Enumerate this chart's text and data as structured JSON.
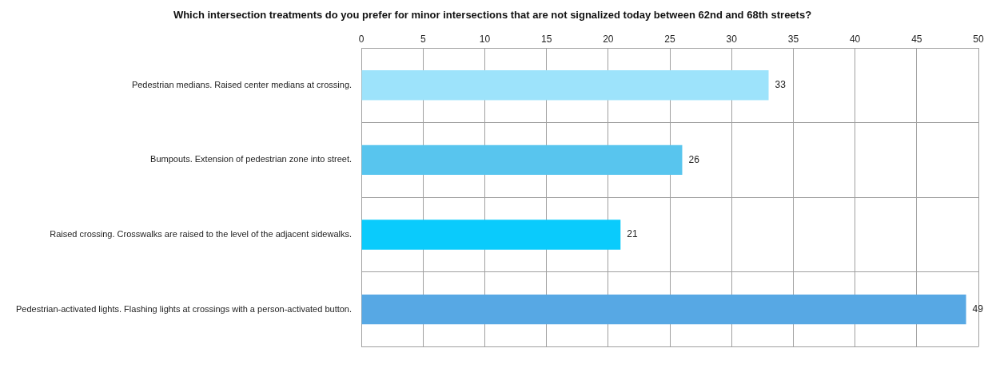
{
  "chart_data": {
    "type": "bar",
    "orientation": "horizontal",
    "title": "Which intersection treatments do you prefer for minor intersections that are not signalized today between 62nd and 68th streets?",
    "categories": [
      "Pedestrian medians. Raised center medians at crossing.",
      "Bumpouts. Extension of pedestrian zone into street.",
      "Raised crossing. Crosswalks are raised to the level of the adjacent sidewalks.",
      "Pedestrian-activated lights. Flashing lights at crossings with a person-activated button."
    ],
    "values": [
      33,
      26,
      21,
      49
    ],
    "colors": [
      "#9de3fb",
      "#58c5ee",
      "#0acbfc",
      "#57a8e4"
    ],
    "xlim": [
      0,
      50
    ],
    "xticks": [
      0,
      5,
      10,
      15,
      20,
      25,
      30,
      35,
      40,
      45,
      50
    ],
    "grid": true,
    "data_labels": true,
    "legend": false
  }
}
